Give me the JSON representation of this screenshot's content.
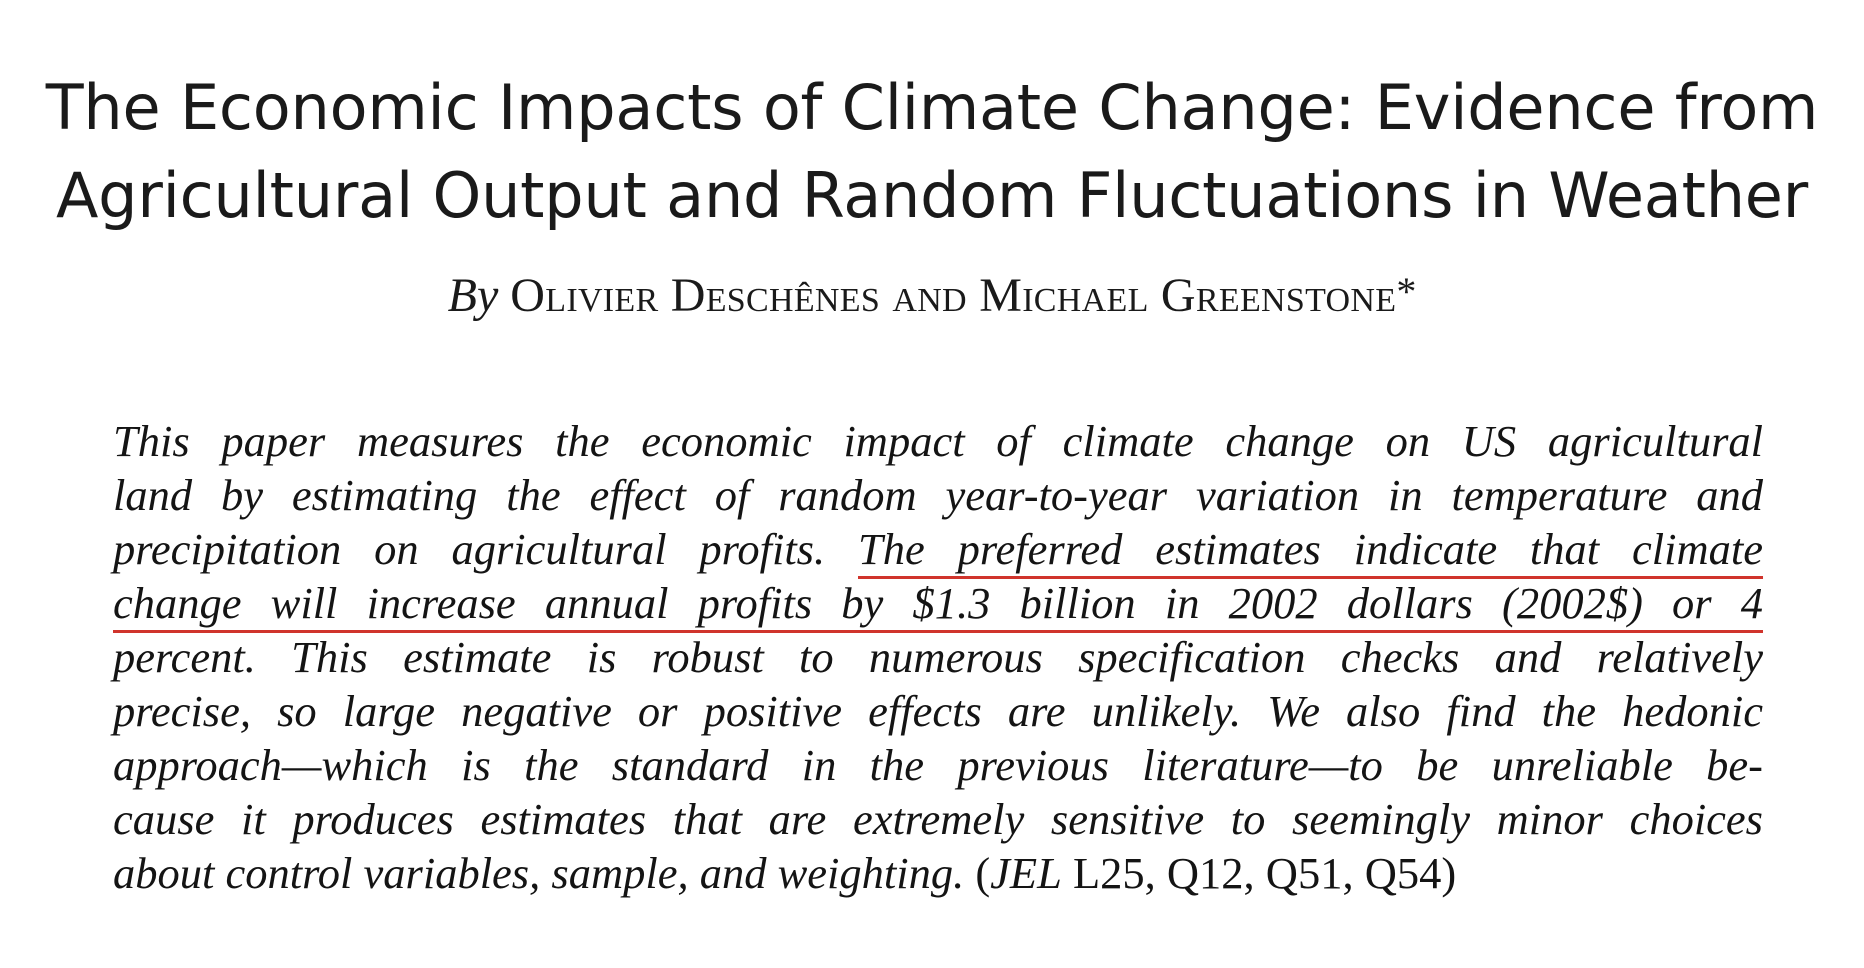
{
  "paper": {
    "title_lines": [
      "The Economic Impacts of Climate Change: Evidence from",
      "Agricultural Output and Random Fluctuations in Weather"
    ],
    "byline": {
      "prefix": "By",
      "authors": "Olivier Deschênes and Michael Greenstone",
      "footnote_mark": "*"
    },
    "abstract": {
      "line1": "This paper measures the economic impact of climate change on US agricultural",
      "line2": "land by estimating the effect of random year-to-year variation in temperature and",
      "line3_plain": "precipitation on agricultural profits. ",
      "line3_highlight": "The preferred estimates indicate that climate",
      "line4_highlight": "change will increase annual profits by $1.3 billion in 2002 dollars (2002$) or 4",
      "line5": "percent. This estimate is robust to numerous specification checks and relatively",
      "line6": "precise, so large negative or positive effects are unlikely. We also find the hedonic",
      "line7": "approach—which is the standard in the previous literature—to be unreliable be-",
      "line8": "cause it produces estimates that are extremely sensitive to seemingly minor choices",
      "line9_italic": "about control variables, sample, and weighting. ",
      "line9_paren_open": "(",
      "line9_jel": "JEL",
      "line9_codes": " L25, Q12, Q51, Q54)"
    },
    "highlight_color": "#d0342c"
  }
}
